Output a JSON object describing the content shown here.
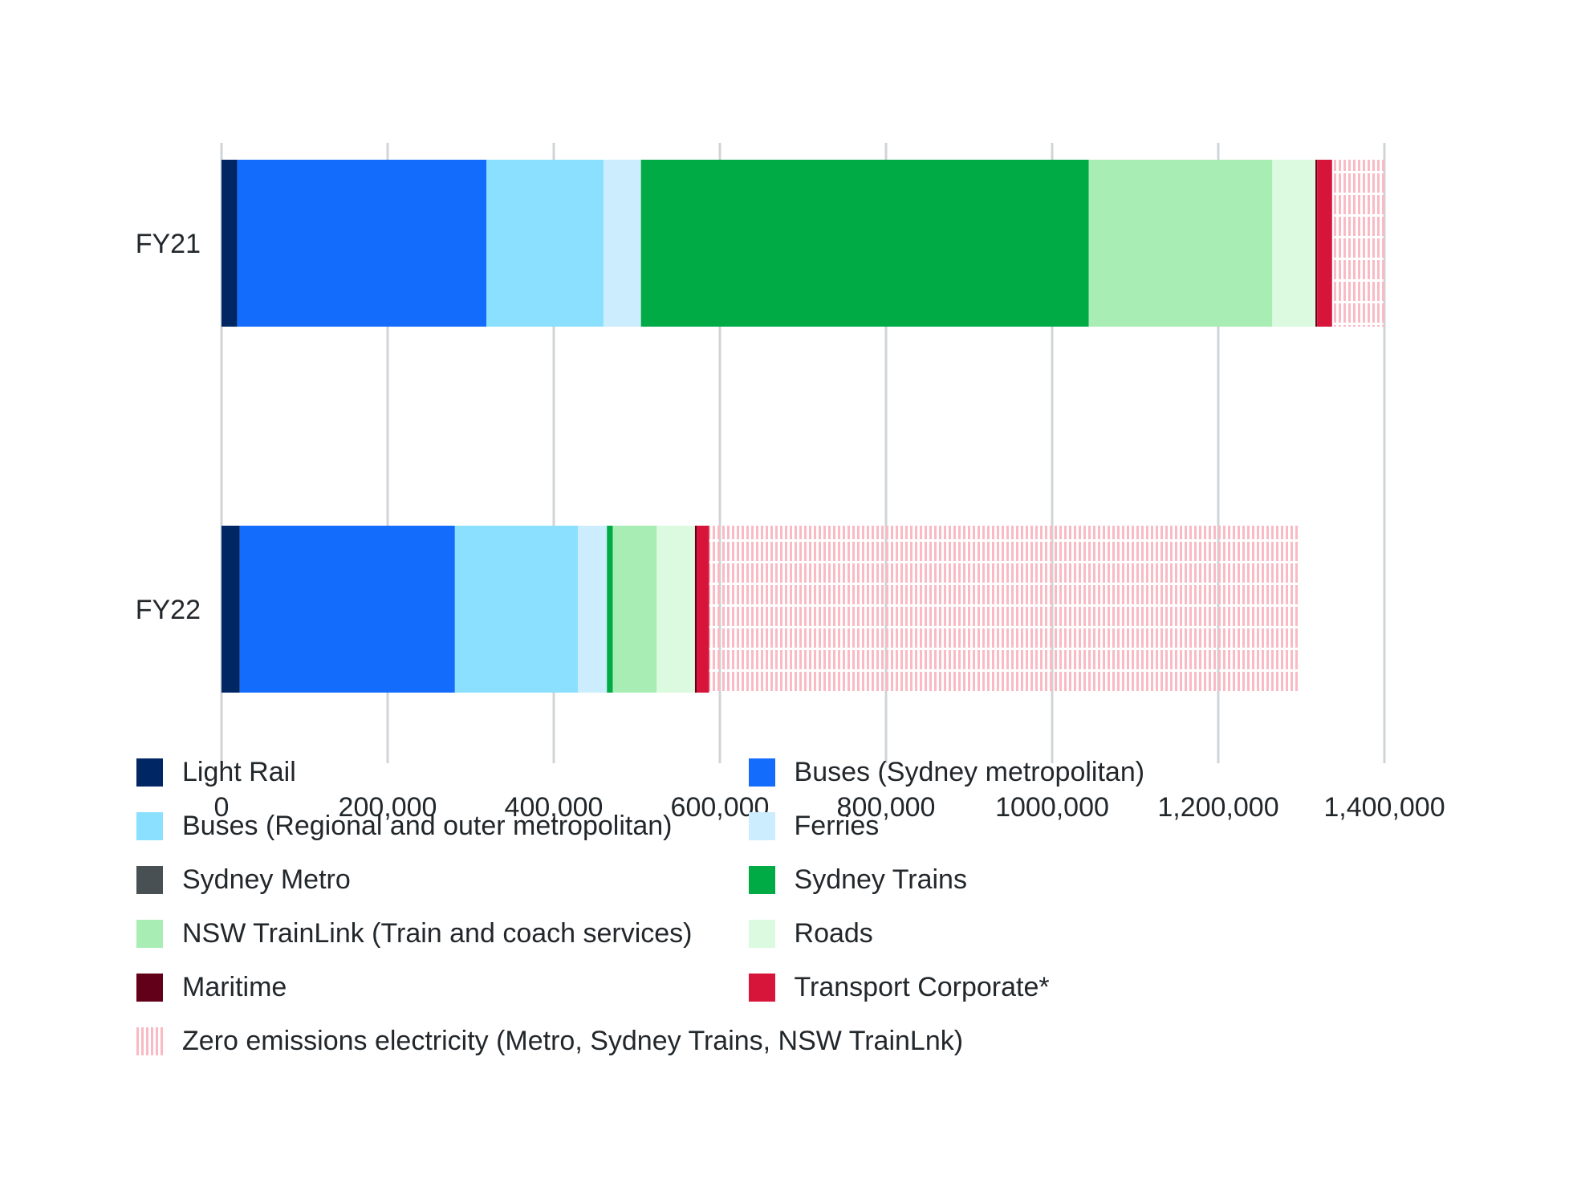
{
  "chart_data": {
    "type": "bar",
    "orientation": "horizontal",
    "stacked": true,
    "title": "",
    "xlabel": "",
    "ylabel": "",
    "categories": [
      "FY21",
      "FY22"
    ],
    "xlim": [
      0,
      1400000
    ],
    "xticks": [
      0,
      200000,
      400000,
      600000,
      800000,
      1000000,
      1200000,
      1400000
    ],
    "xtick_labels": [
      "0",
      "200,000",
      "400,000",
      "600,000",
      "800,000",
      "1000,000",
      "1,200,000",
      "1,400,000"
    ],
    "grid": "vertical",
    "legend_position": "bottom",
    "series": [
      {
        "name": "Light Rail",
        "color": "#002664",
        "values": [
          19000,
          22000
        ]
      },
      {
        "name": "Buses (Sydney metropolitan)",
        "color": "#146cfd",
        "values": [
          300000,
          259000
        ]
      },
      {
        "name": "Buses (Regional and outer metropolitan)",
        "color": "#8ce0ff",
        "values": [
          141000,
          148000
        ]
      },
      {
        "name": "Ferries",
        "color": "#cbedfd",
        "values": [
          45000,
          35000
        ]
      },
      {
        "name": "Sydney Metro",
        "color": "#495054",
        "values": [
          0,
          0
        ]
      },
      {
        "name": "Sydney Trains",
        "color": "#00aa45",
        "values": [
          539000,
          7000
        ]
      },
      {
        "name": "NSW TrainLink (Train and coach services)",
        "color": "#a8edb3",
        "values": [
          221000,
          53000
        ]
      },
      {
        "name": "Roads",
        "color": "#dbfadf",
        "values": [
          52000,
          46000
        ]
      },
      {
        "name": "Maritime",
        "color": "#630019",
        "values": [
          2000,
          2000
        ]
      },
      {
        "name": "Transport Corporate*",
        "color": "#d7153a",
        "values": [
          18000,
          15000
        ]
      },
      {
        "name": "Zero emissions electricity (Metro, Sydney Trains, NSW TrainLnk)",
        "color": "#f9bac4",
        "pattern": "vertical-stripes",
        "values": [
          64000,
          710000
        ]
      }
    ]
  }
}
